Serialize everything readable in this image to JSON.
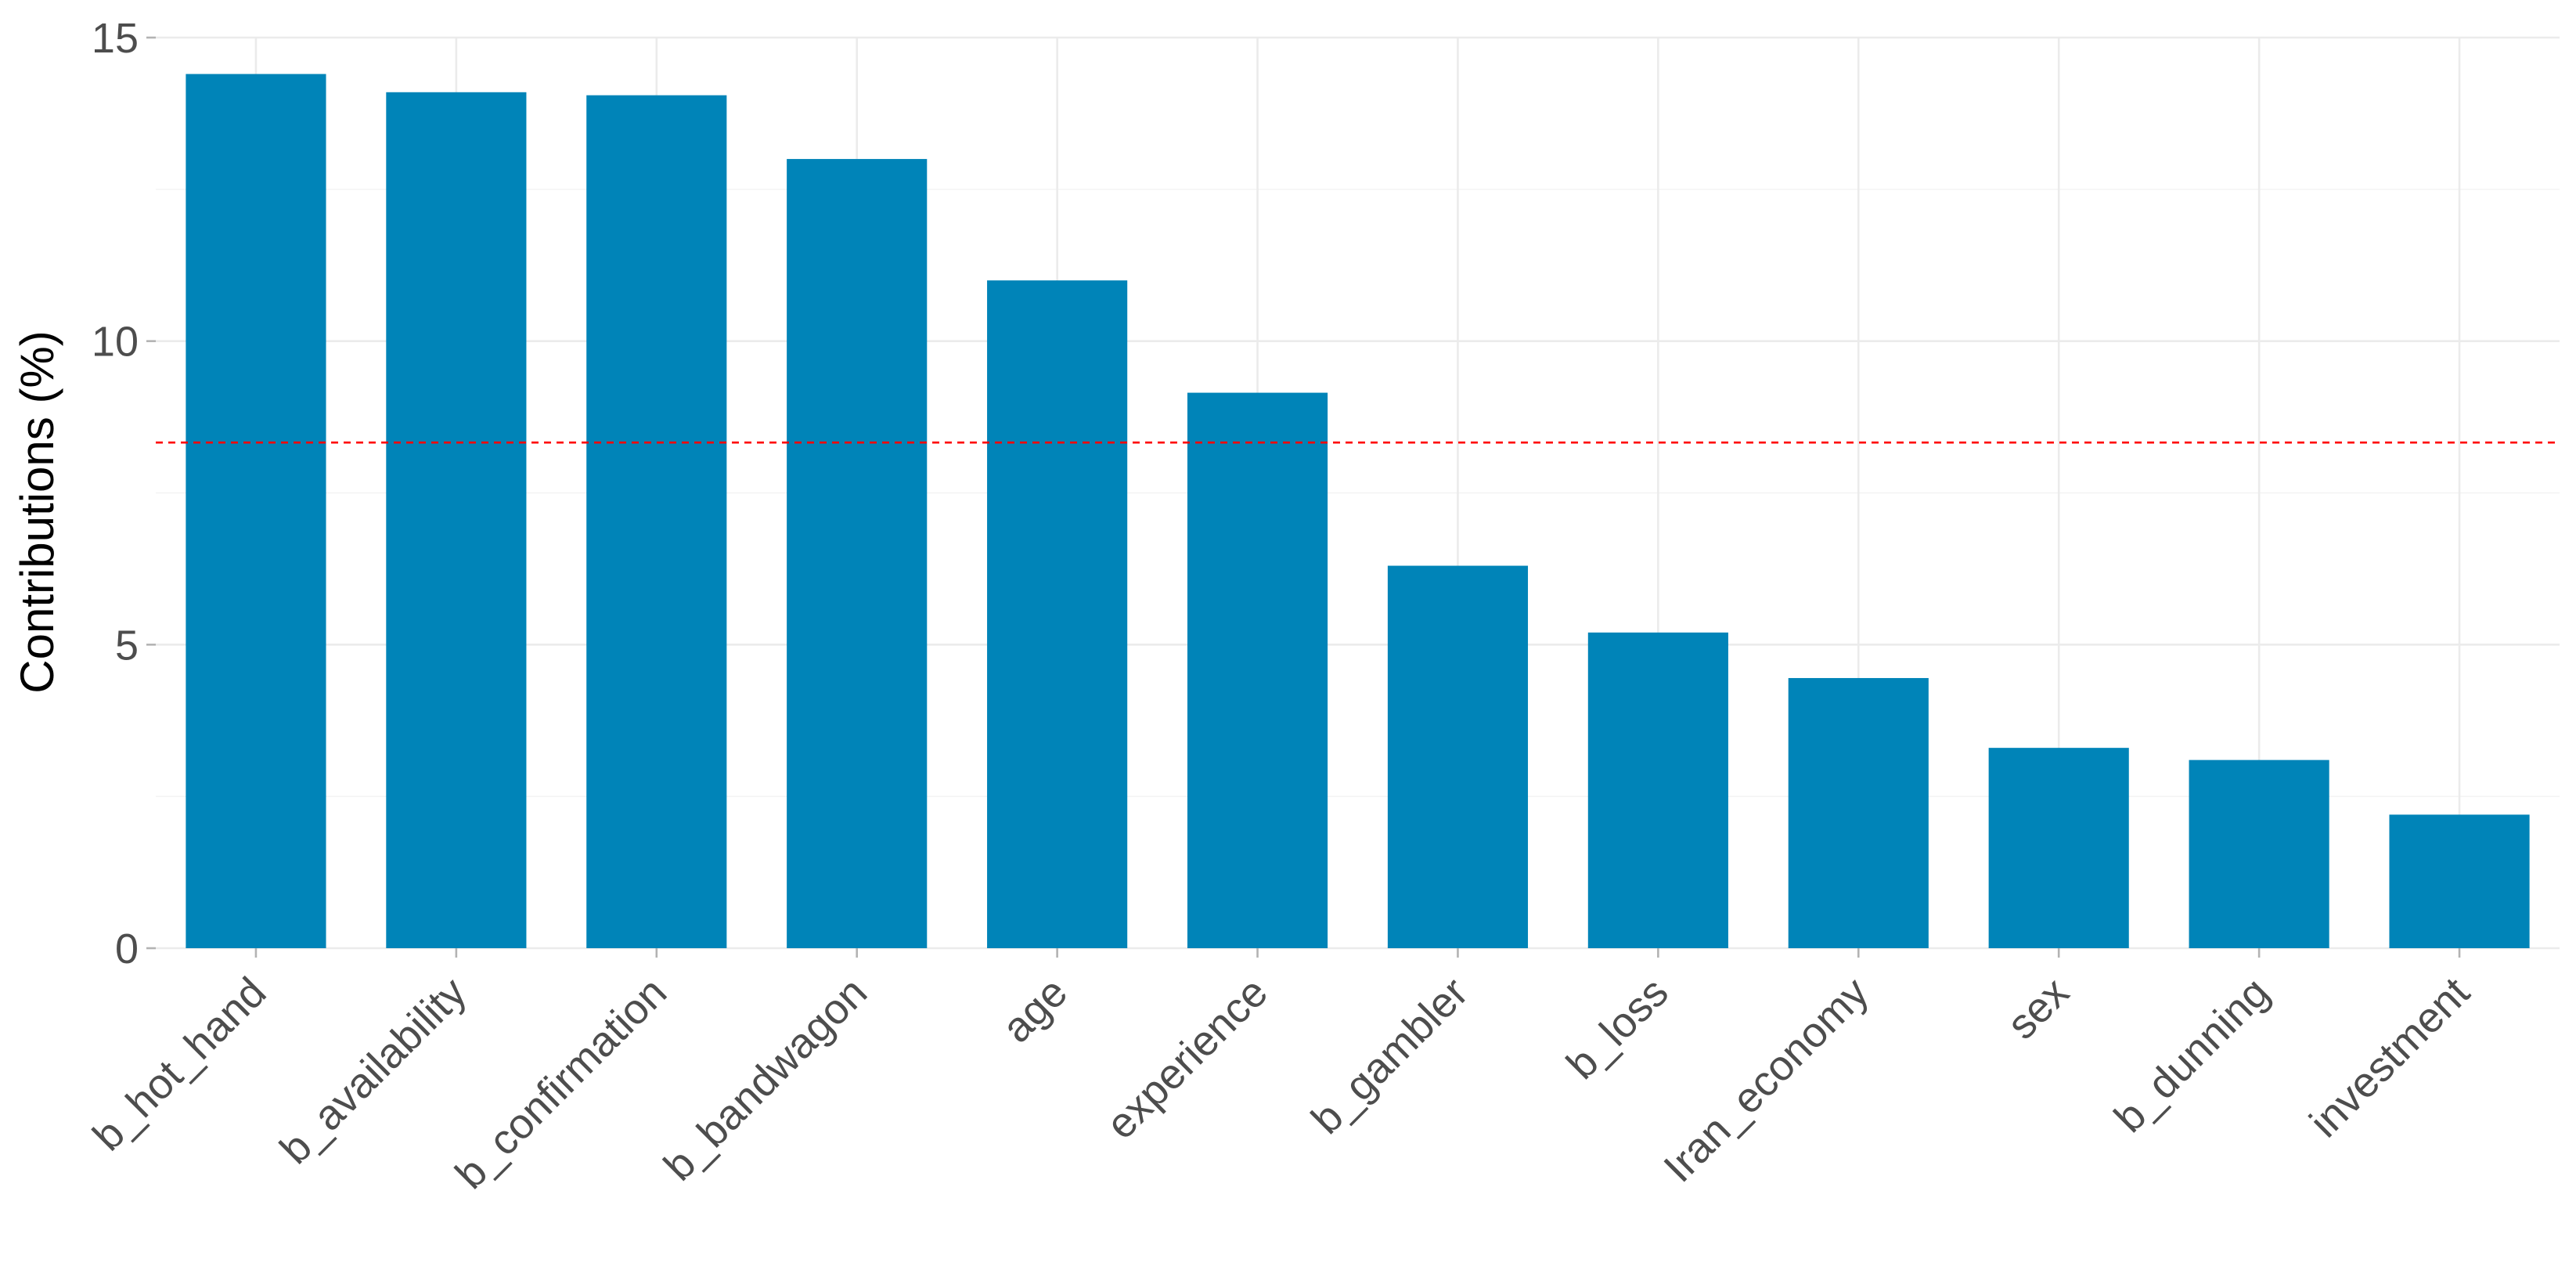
{
  "chart_data": {
    "type": "bar",
    "title": "",
    "xlabel": "",
    "ylabel": "Contributions (%)",
    "categories": [
      "b_hot_hand",
      "b_availability",
      "b_confirmation",
      "b_bandwagon",
      "age",
      "experience",
      "b_gambler",
      "b_loss",
      "Iran_economy",
      "sex",
      "b_dunning",
      "investment"
    ],
    "values": [
      14.4,
      14.1,
      14.05,
      13.0,
      11.0,
      9.15,
      6.3,
      5.2,
      4.45,
      3.3,
      3.1,
      2.2
    ],
    "ylim": [
      0,
      15
    ],
    "yticks": [
      0,
      5,
      10,
      15
    ],
    "reference_line": {
      "value": 8.33,
      "style": "dashed"
    },
    "bar_color": "#0084b8",
    "reference_line_color": "#ff0000",
    "grid": true
  }
}
